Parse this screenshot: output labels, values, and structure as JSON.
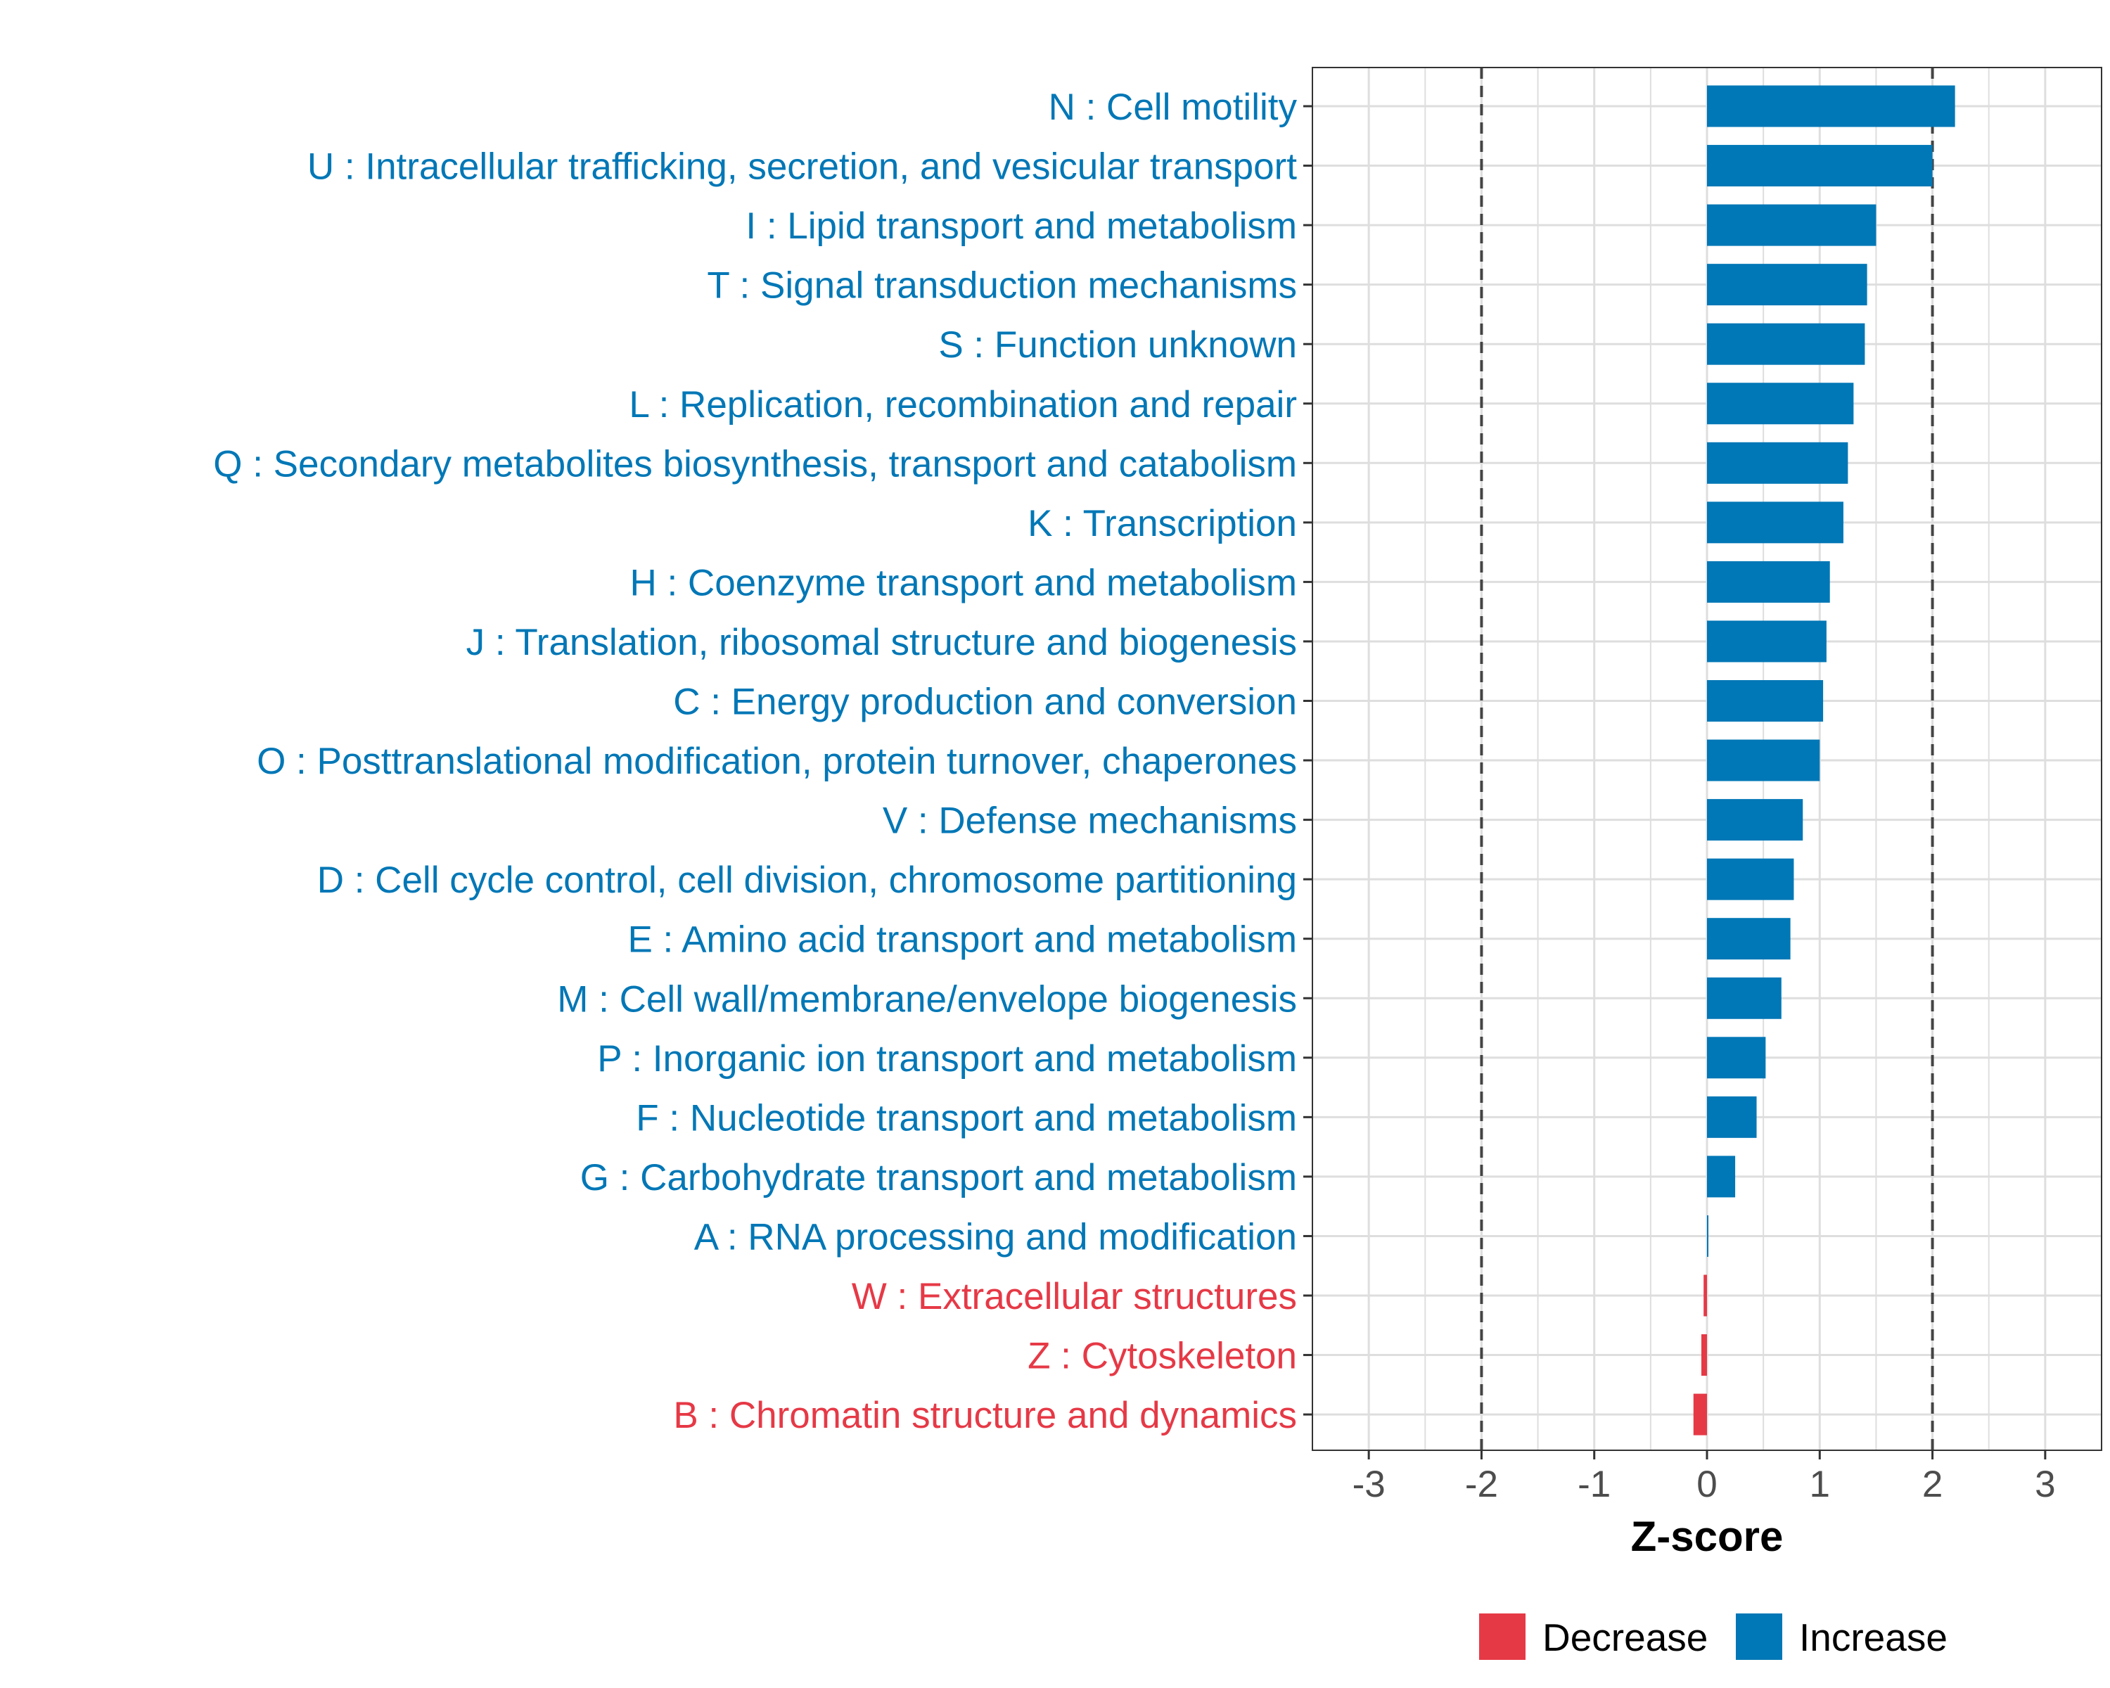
{
  "chart_data": {
    "type": "bar",
    "orientation": "horizontal",
    "xlabel": "Z-score",
    "ylabel": "",
    "xlim": [
      -3.5,
      3.5
    ],
    "xticks": [
      -3,
      -2,
      -1,
      0,
      1,
      2,
      3
    ],
    "xtick_labels": [
      "-3",
      "-2",
      "-1",
      "0",
      "1",
      "2",
      "3"
    ],
    "reference_lines": [
      -2,
      2
    ],
    "grid": true,
    "legend_position": "bottom",
    "colors": {
      "Decrease": "#E63946",
      "Increase": "#0077B6"
    },
    "legend": [
      {
        "label": "Decrease",
        "color": "#E63946"
      },
      {
        "label": "Increase",
        "color": "#0077B6"
      }
    ],
    "categories": [
      "N : Cell motility",
      "U : Intracellular trafficking, secretion, and vesicular transport",
      "I : Lipid transport and metabolism",
      "T : Signal transduction mechanisms",
      "S : Function unknown",
      "L : Replication, recombination and repair",
      "Q : Secondary metabolites biosynthesis, transport and catabolism",
      "K : Transcription",
      "H : Coenzyme transport and metabolism",
      "J : Translation, ribosomal structure and biogenesis",
      "C : Energy production and conversion",
      "O : Posttranslational modification, protein turnover, chaperones",
      "V : Defense mechanisms",
      "D : Cell cycle control, cell division, chromosome partitioning",
      "E : Amino acid transport and metabolism",
      "M : Cell wall/membrane/envelope biogenesis",
      "P : Inorganic ion transport and metabolism",
      "F : Nucleotide transport and metabolism",
      "G : Carbohydrate transport and metabolism",
      "A : RNA processing and modification",
      "W : Extracellular structures",
      "Z : Cytoskeleton",
      "B : Chromatin structure and dynamics"
    ],
    "values": [
      2.2,
      2.0,
      1.5,
      1.42,
      1.4,
      1.3,
      1.25,
      1.21,
      1.09,
      1.06,
      1.03,
      1.0,
      0.85,
      0.77,
      0.74,
      0.66,
      0.52,
      0.44,
      0.25,
      0.01,
      -0.03,
      -0.05,
      -0.12
    ],
    "groups": [
      "Increase",
      "Increase",
      "Increase",
      "Increase",
      "Increase",
      "Increase",
      "Increase",
      "Increase",
      "Increase",
      "Increase",
      "Increase",
      "Increase",
      "Increase",
      "Increase",
      "Increase",
      "Increase",
      "Increase",
      "Increase",
      "Increase",
      "Increase",
      "Decrease",
      "Decrease",
      "Decrease"
    ]
  }
}
